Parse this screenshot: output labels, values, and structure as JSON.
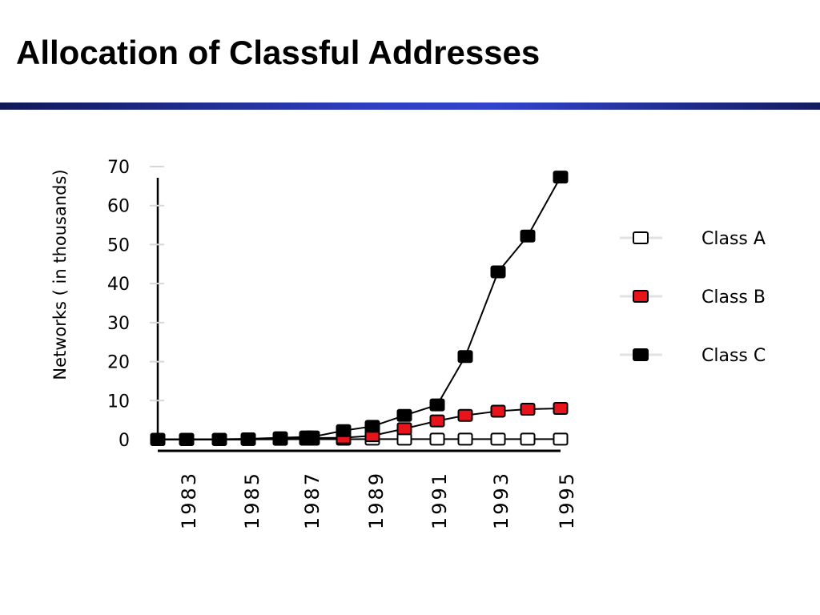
{
  "slide": {
    "title": "Allocation of Classful Addresses"
  },
  "colors": {
    "title_rule": "#2f3fc0",
    "class_a": "#ffffff",
    "class_b": "#e8141c",
    "class_c": "#000000"
  },
  "chart_data": {
    "type": "line",
    "ylabel": "Networks ( in thousands)",
    "xlabel": "",
    "ylim": [
      0,
      70
    ],
    "yticks": [
      0,
      10,
      20,
      30,
      40,
      50,
      60,
      70
    ],
    "xticks": [
      1983,
      1985,
      1987,
      1989,
      1991,
      1993,
      1995
    ],
    "x": [
      1982,
      1983,
      1984,
      1985,
      1986,
      1987,
      1987.1,
      1988,
      1989,
      1990,
      1991,
      1992,
      1993,
      1994,
      1995
    ],
    "series": [
      {
        "name": "Class A",
        "color": "#ffffff",
        "values": [
          0.04,
          0.05,
          0.05,
          0.06,
          0.08,
          0.1,
          0.1,
          0.1,
          0.12,
          0.12,
          0.12,
          0.12,
          0.12,
          0.12,
          0.12
        ]
      },
      {
        "name": "Class B",
        "color": "#e8141c",
        "values": [
          0.01,
          0.01,
          0.01,
          0.02,
          0.3,
          0.4,
          0.4,
          0.5,
          1.0,
          2.8,
          4.8,
          6.2,
          7.3,
          7.8,
          8.0
        ]
      },
      {
        "name": "Class C",
        "color": "#000000",
        "values": [
          0.1,
          0.1,
          0.1,
          0.2,
          0.5,
          0.7,
          0.7,
          2.3,
          3.4,
          6.2,
          8.9,
          21.3,
          43.0,
          52.2,
          67.3
        ]
      }
    ],
    "legend": {
      "placement": "right",
      "entries": [
        "Class A",
        "Class B",
        "Class C"
      ]
    },
    "grid": false
  }
}
